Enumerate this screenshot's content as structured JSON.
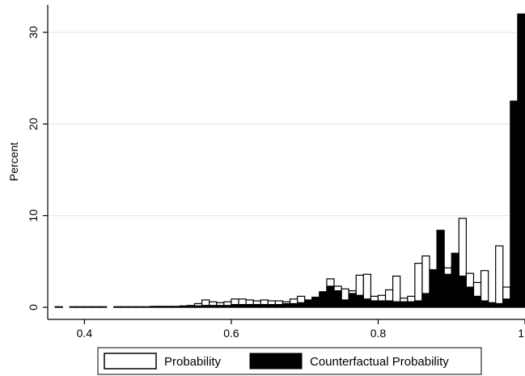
{
  "chart_data": {
    "type": "bar",
    "subtype": "overlaid-histogram",
    "title": "",
    "xlabel": "",
    "ylabel": "Percent",
    "xlim": [
      0.35,
      1.0
    ],
    "ylim": [
      0,
      33
    ],
    "x_ticks": [
      0.4,
      0.6,
      0.8,
      1
    ],
    "x_tick_labels": [
      "0.4",
      "0.6",
      "0.8",
      "1"
    ],
    "y_ticks": [
      0,
      10,
      20,
      30
    ],
    "y_tick_labels": [
      "0",
      "10",
      "20",
      "30"
    ],
    "grid": "horizontal",
    "legend_position": "bottom",
    "bin_width": 0.01,
    "bin_starts": [
      0.35,
      0.36,
      0.37,
      0.38,
      0.39,
      0.4,
      0.41,
      0.42,
      0.43,
      0.44,
      0.45,
      0.46,
      0.47,
      0.48,
      0.49,
      0.5,
      0.51,
      0.52,
      0.53,
      0.54,
      0.55,
      0.56,
      0.57,
      0.58,
      0.59,
      0.6,
      0.61,
      0.62,
      0.63,
      0.64,
      0.65,
      0.66,
      0.67,
      0.68,
      0.69,
      0.7,
      0.71,
      0.72,
      0.73,
      0.74,
      0.75,
      0.76,
      0.77,
      0.78,
      0.79,
      0.8,
      0.81,
      0.82,
      0.83,
      0.84,
      0.85,
      0.86,
      0.87,
      0.88,
      0.89,
      0.9,
      0.91,
      0.92,
      0.93,
      0.94,
      0.95,
      0.96,
      0.97,
      0.98,
      0.99
    ],
    "series": [
      {
        "name": "Probability",
        "fill": "#ffffff",
        "stroke": "#000000",
        "values": [
          0,
          0.05,
          0,
          0.05,
          0.05,
          0.05,
          0.05,
          0.05,
          0,
          0.05,
          0.05,
          0.05,
          0.05,
          0.05,
          0.1,
          0.1,
          0.1,
          0.1,
          0.15,
          0.2,
          0.4,
          0.8,
          0.6,
          0.5,
          0.6,
          0.9,
          0.9,
          0.8,
          0.7,
          0.8,
          0.7,
          0.7,
          0.6,
          0.9,
          1.2,
          0.8,
          1.0,
          1.5,
          3.1,
          2.3,
          2.0,
          1.8,
          3.5,
          3.6,
          1.2,
          1.3,
          1.9,
          3.4,
          1.0,
          1.2,
          4.8,
          5.6,
          0.6,
          4.5,
          4.3,
          4.5,
          9.7,
          3.7,
          2.7,
          4.0,
          0.4,
          6.7,
          2.2,
          0.4,
          0.4
        ]
      },
      {
        "name": "Counterfactual Probability",
        "fill": "#000000",
        "stroke": "#000000",
        "values": [
          0,
          0.05,
          0,
          0.05,
          0.05,
          0.05,
          0.05,
          0.05,
          0,
          0.05,
          0.05,
          0.05,
          0.05,
          0.05,
          0.05,
          0.05,
          0.05,
          0.05,
          0.1,
          0.1,
          0.15,
          0.2,
          0.2,
          0.2,
          0.2,
          0.3,
          0.3,
          0.3,
          0.3,
          0.3,
          0.3,
          0.3,
          0.4,
          0.4,
          0.5,
          0.7,
          1.1,
          1.7,
          2.3,
          1.8,
          0.8,
          1.5,
          1.3,
          0.9,
          0.7,
          0.7,
          0.7,
          0.6,
          0.6,
          0.6,
          0.7,
          1.5,
          4.1,
          8.4,
          3.6,
          5.9,
          3.4,
          2.2,
          1.2,
          0.7,
          0.5,
          0.4,
          0.9,
          22.5,
          32.0
        ]
      }
    ]
  }
}
